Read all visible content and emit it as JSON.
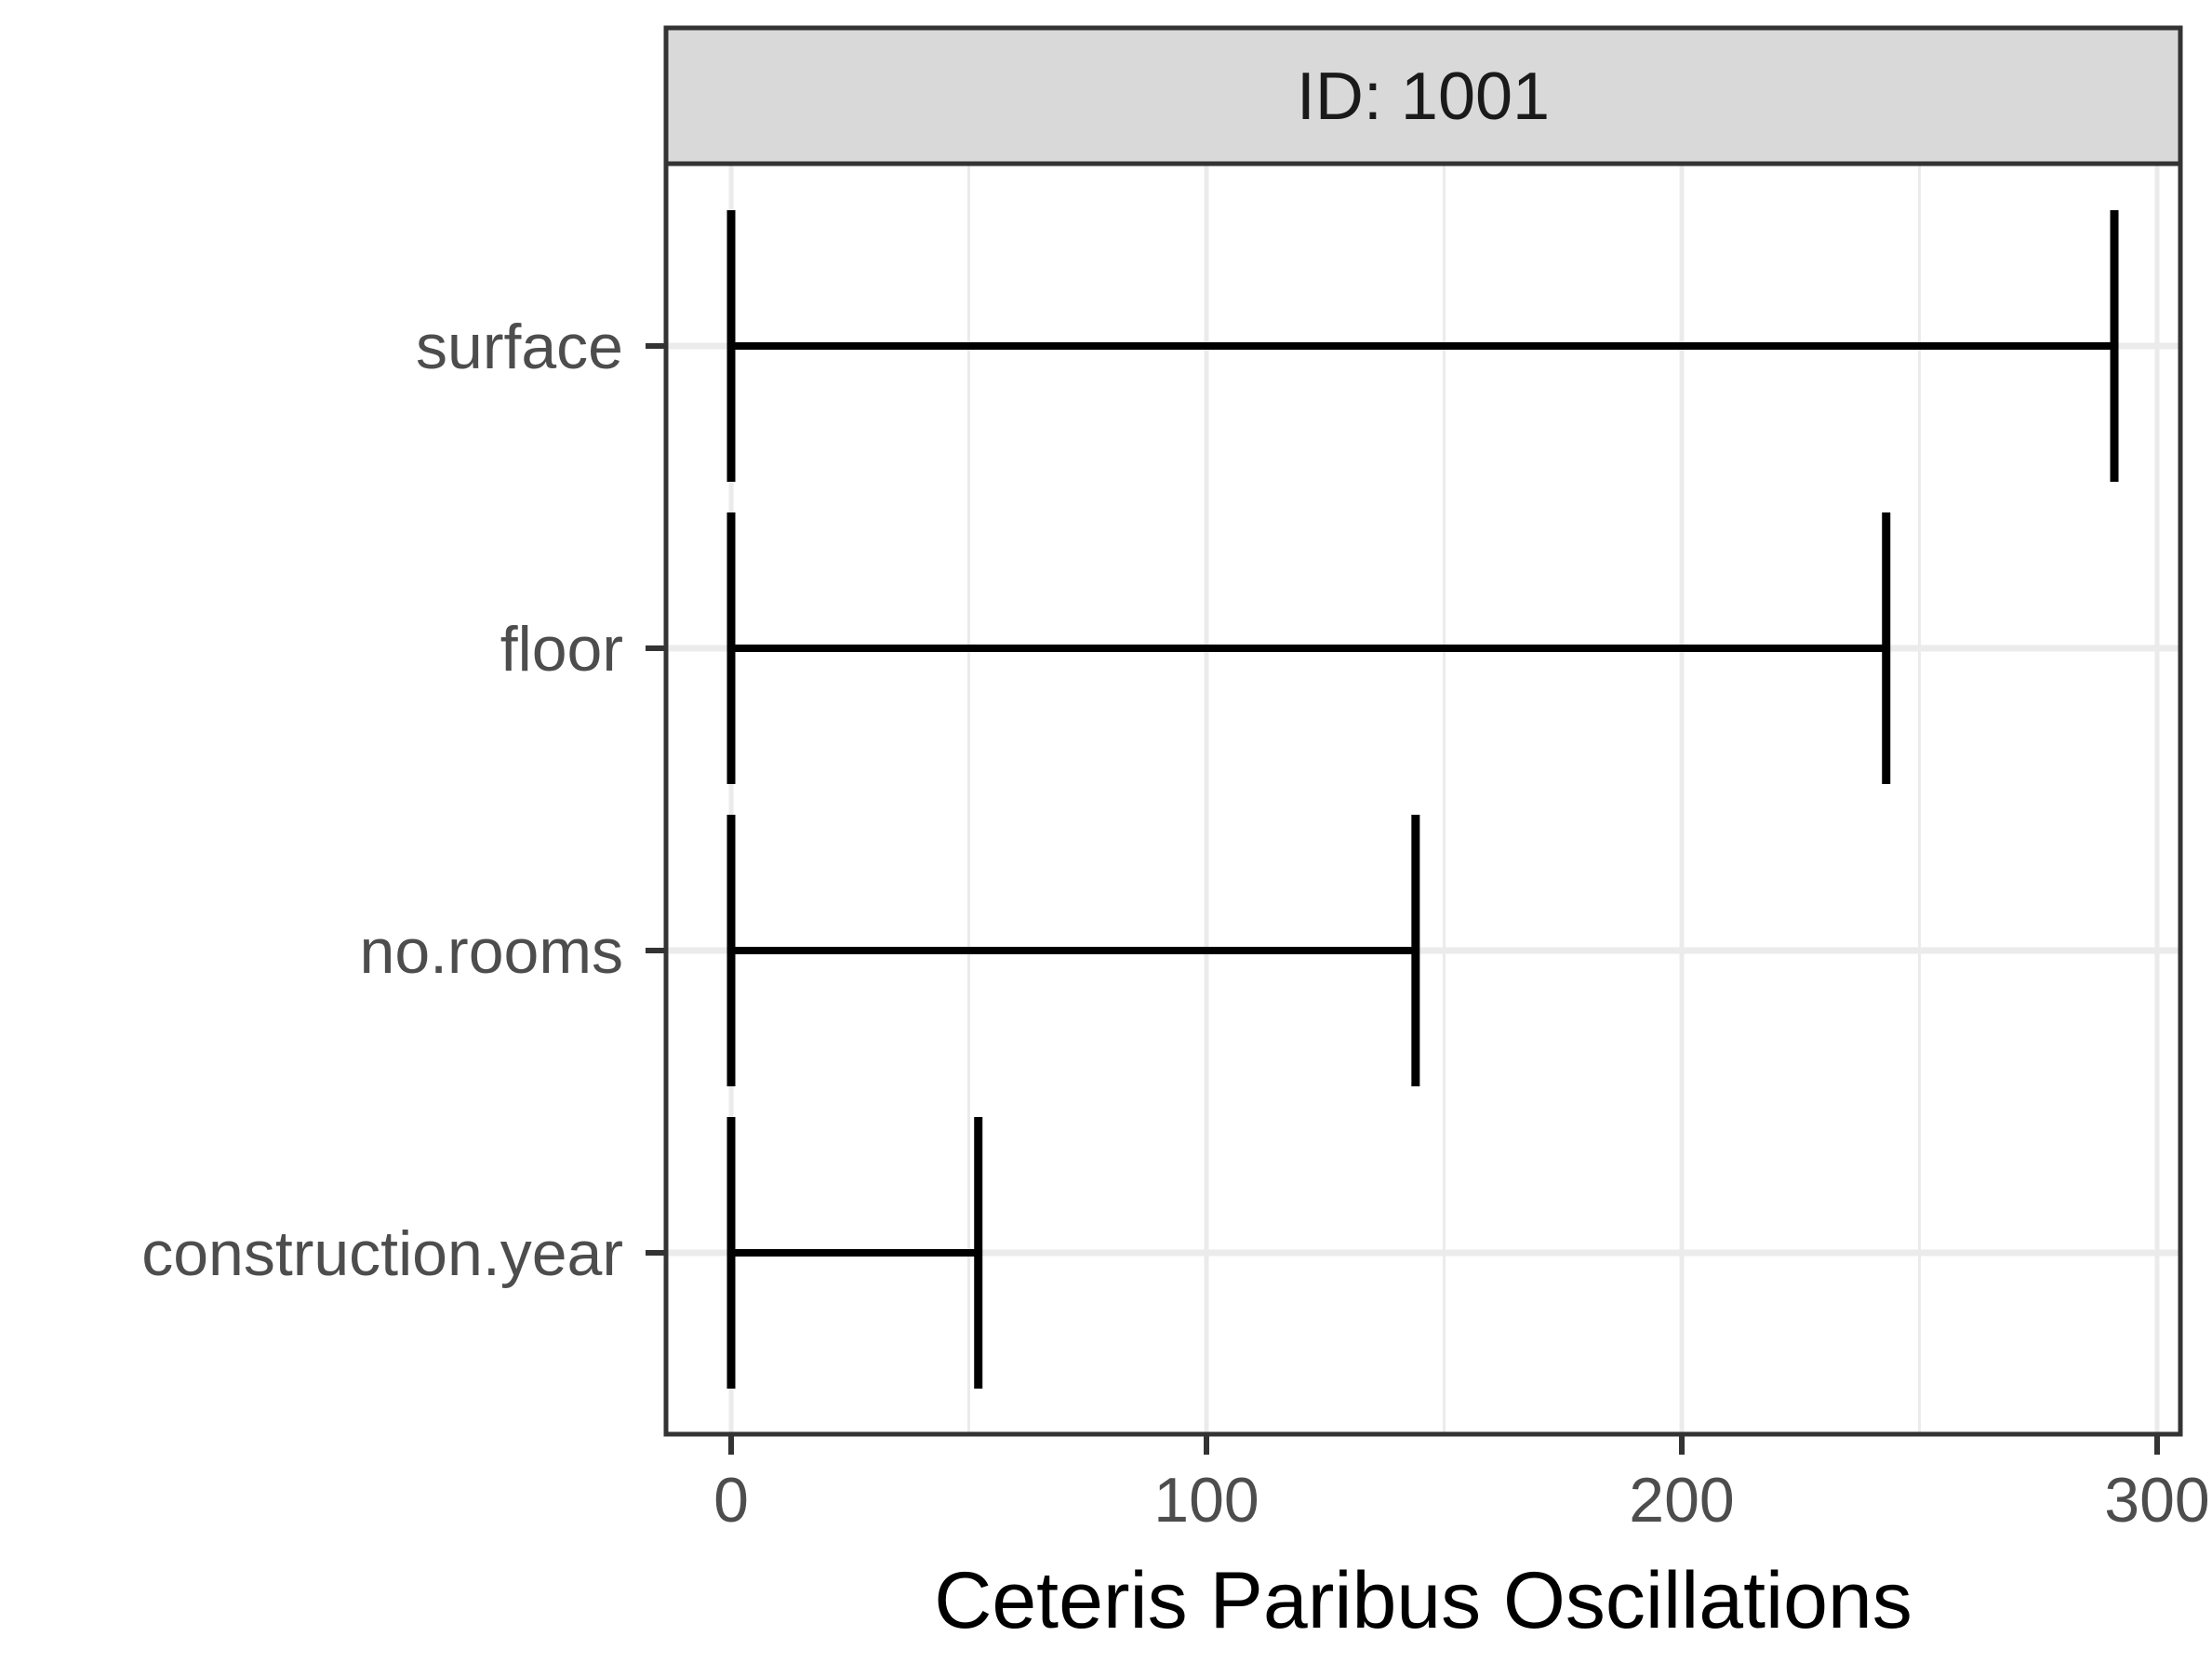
{
  "chart_data": {
    "type": "errorbar",
    "facet_title": "ID: 1001",
    "xlabel": "Ceteris Paribus Oscillations",
    "ylabel": "",
    "xlim": [
      -14,
      305
    ],
    "x_ticks": [
      0,
      100,
      200,
      300
    ],
    "x_tick_labels": [
      "0",
      "100",
      "200",
      "300"
    ],
    "categories": [
      "surface",
      "floor",
      "no.rooms",
      "construction.year"
    ],
    "series": [
      {
        "bars": [
          {
            "category": "surface",
            "xmin": 0,
            "xmax": 291
          },
          {
            "category": "floor",
            "xmin": 0,
            "xmax": 243
          },
          {
            "category": "no.rooms",
            "xmin": 0,
            "xmax": 144
          },
          {
            "category": "construction.year",
            "xmin": 0,
            "xmax": 52
          }
        ]
      }
    ],
    "grid": true,
    "colors": {
      "bar": "#000000",
      "panel_border": "#333333",
      "strip_fill": "#d9d9d9",
      "grid_major": "#ebebeb",
      "tick_text": "#4d4d4d"
    }
  }
}
